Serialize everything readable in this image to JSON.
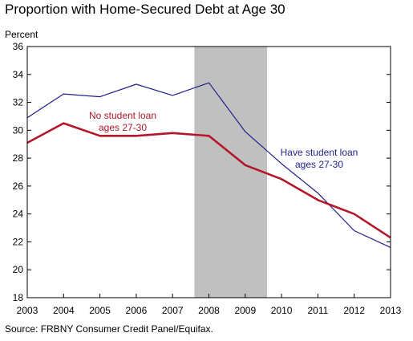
{
  "title": "Proportion with Home-Secured Debt at Age 30",
  "y_unit_label": "Percent",
  "source": "Source: FRBNY Consumer Credit Panel/Equifax.",
  "chart_data": {
    "type": "line",
    "title": "Proportion with Home-Secured Debt at Age 30",
    "xlabel": "",
    "ylabel": "Percent",
    "x": [
      2003,
      2004,
      2005,
      2006,
      2007,
      2008,
      2009,
      2010,
      2011,
      2012,
      2013
    ],
    "xlim": [
      2003,
      2013
    ],
    "ylim": [
      18,
      36
    ],
    "yticks": [
      18,
      20,
      22,
      24,
      26,
      28,
      30,
      32,
      34,
      36
    ],
    "grid": false,
    "legend": "none",
    "shaded_region": {
      "x_start": 2007.6,
      "x_end": 2009.6,
      "color": "#c0c0c0"
    },
    "series": [
      {
        "name": "Have student loan ages 27-30",
        "color": "#1f1f8f",
        "values": [
          30.9,
          32.6,
          32.4,
          33.3,
          32.5,
          33.4,
          29.9,
          27.6,
          25.5,
          22.8,
          21.6
        ]
      },
      {
        "name": "No student loan ages 27-30",
        "color": "#b5172a",
        "values": [
          29.1,
          30.5,
          29.6,
          29.6,
          29.8,
          29.6,
          27.5,
          26.5,
          25.0,
          24.0,
          22.3
        ]
      }
    ],
    "annotations": [
      {
        "lines": [
          "No student loan",
          "ages 27-30"
        ],
        "series_index": 1,
        "color": "#b5172a"
      },
      {
        "lines": [
          "Have student loan",
          "ages 27-30"
        ],
        "series_index": 0,
        "color": "#1f1f8f"
      }
    ]
  }
}
